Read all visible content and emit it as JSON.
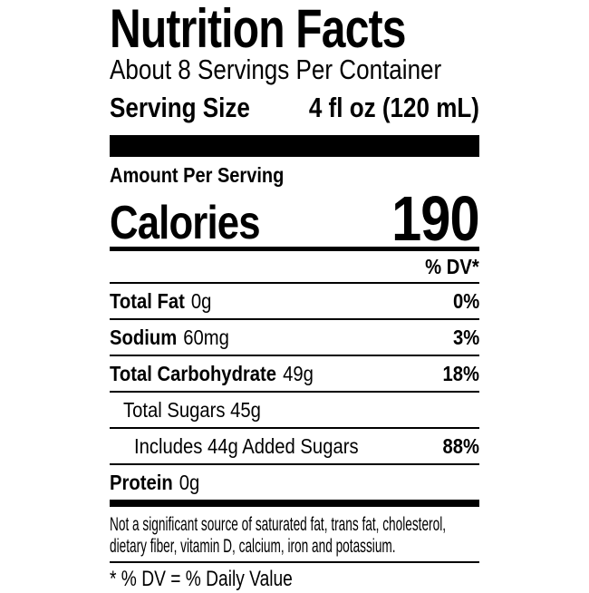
{
  "label": {
    "title": "Nutrition Facts",
    "servings_per_container": "About 8 Servings Per Container",
    "serving_size_label": "Serving Size",
    "serving_size_value": "4 fl oz (120 mL)",
    "amount_per_serving": "Amount Per Serving",
    "calories_label": "Calories",
    "calories_value": "190",
    "dv_header": "% DV*",
    "rows": [
      {
        "bold_part": "Total Fat",
        "regular_part": "0g",
        "dv": "0%",
        "indent": 0
      },
      {
        "bold_part": "Sodium",
        "regular_part": "60mg",
        "dv": "3%",
        "indent": 0
      },
      {
        "bold_part": "Total Carbohydrate",
        "regular_part": "49g",
        "dv": "18%",
        "indent": 0
      },
      {
        "bold_part": "",
        "regular_part": "Total Sugars 45g",
        "dv": "",
        "indent": 1
      },
      {
        "bold_part": "",
        "regular_part": "Includes 44g Added Sugars",
        "dv": "88%",
        "indent": 2
      },
      {
        "bold_part": "Protein",
        "regular_part": "0g",
        "dv": "",
        "indent": 0
      }
    ],
    "footnote_line1": "Not a significant source of saturated fat, trans fat, cholesterol,",
    "footnote_line2": "dietary fiber, vitamin D, calcium, iron and potassium.",
    "dv_note": "* % DV = % Daily Value"
  },
  "colors": {
    "text": "#000000",
    "background": "#ffffff"
  }
}
